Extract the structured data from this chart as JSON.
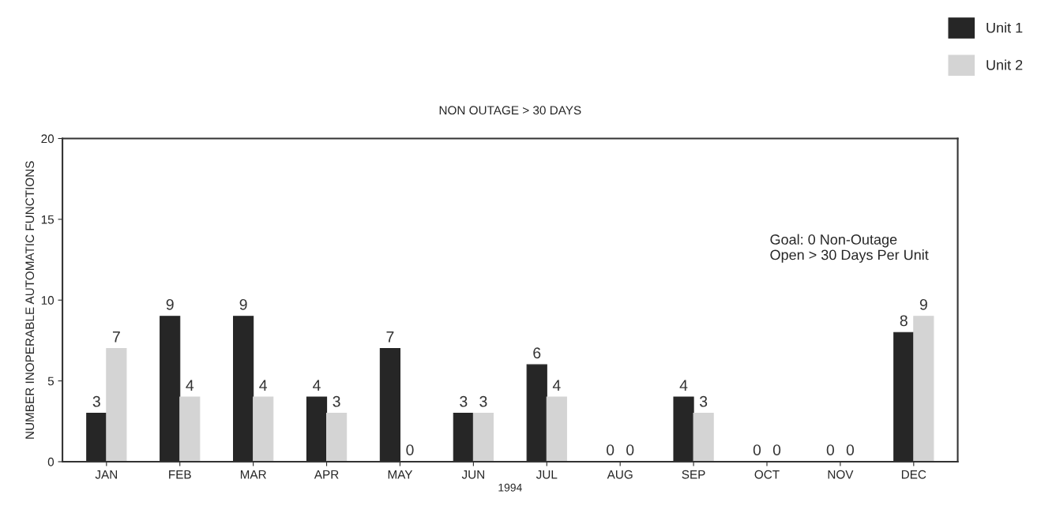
{
  "chart_data": {
    "type": "bar",
    "title": "NON OUTAGE > 30 DAYS",
    "xlabel": "1994",
    "ylabel": "NUMBER INOPERABLE AUTOMATIC FUNCTIONS",
    "categories": [
      "JAN",
      "FEB",
      "MAR",
      "APR",
      "MAY",
      "JUN",
      "JUL",
      "AUG",
      "SEP",
      "OCT",
      "NOV",
      "DEC"
    ],
    "series": [
      {
        "name": "Unit 1",
        "color": "#262626",
        "values": [
          3,
          9,
          9,
          4,
          7,
          3,
          6,
          0,
          4,
          0,
          0,
          8
        ]
      },
      {
        "name": "Unit 2",
        "color": "#d4d4d4",
        "values": [
          7,
          4,
          4,
          3,
          0,
          3,
          4,
          0,
          3,
          0,
          0,
          9
        ]
      }
    ],
    "ylim": [
      0,
      20
    ],
    "yticks": [
      0,
      5,
      10,
      15,
      20
    ],
    "grid": false,
    "legend": "top right",
    "data_labels": true,
    "annotations": [
      "Goal: 0 Non-Outage\nOpen > 30 Days Per Unit"
    ]
  }
}
